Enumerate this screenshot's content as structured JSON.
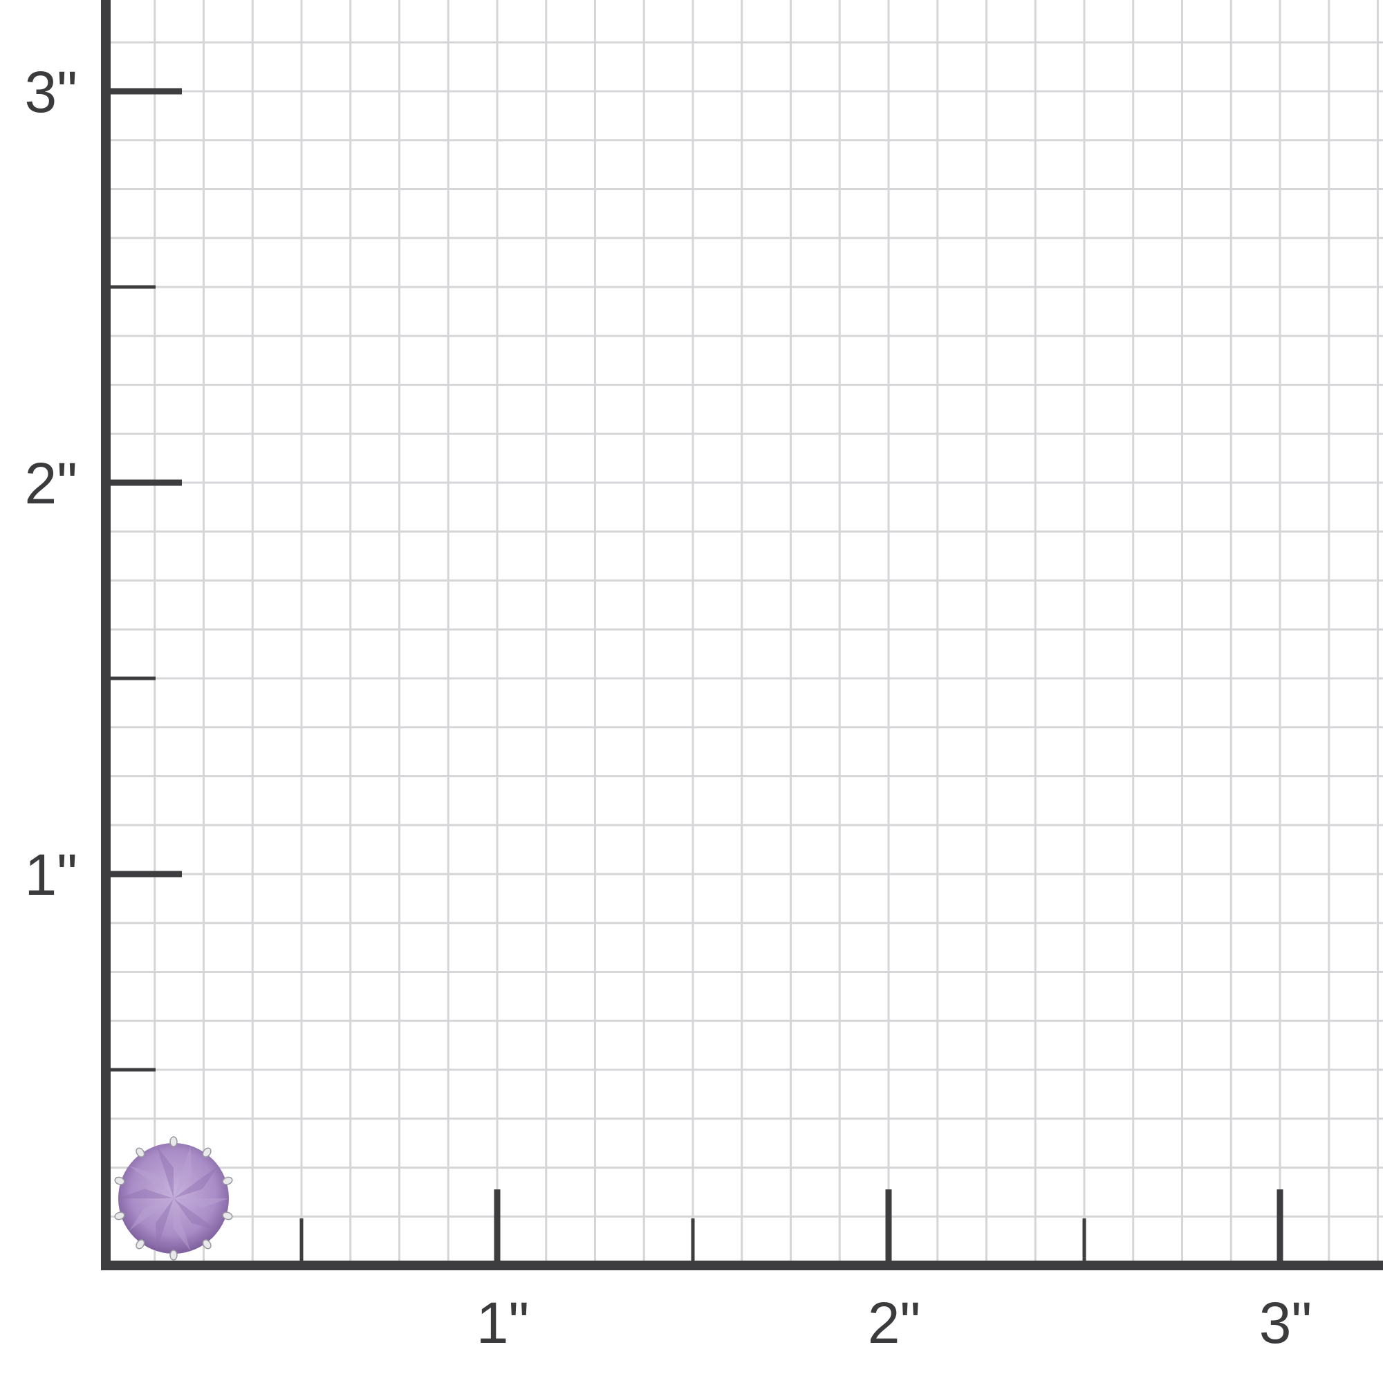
{
  "ruler": {
    "unit_label": "\"",
    "x_labels": [
      "1\"",
      "2\"",
      "3\""
    ],
    "y_labels": [
      "1\"",
      "2\"",
      "3\""
    ],
    "subdivisions_per_inch": 8,
    "colors": {
      "axis": "#3d3d3f",
      "grid": "#d6d6d8",
      "background": "#ffffff"
    }
  },
  "product": {
    "name": "amethyst-round-stud",
    "colors": {
      "stone": "#a98cc6",
      "stone_dark": "#7c5f9c",
      "prong": "#e9e9ec"
    }
  }
}
